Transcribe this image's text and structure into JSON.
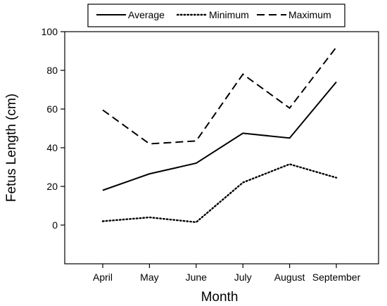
{
  "chart_data": {
    "type": "line",
    "title": "",
    "xlabel": "Month",
    "ylabel": "Fetus Length (cm)",
    "categories": [
      "April",
      "May",
      "June",
      "July",
      "August",
      "September"
    ],
    "ylim": [
      -20,
      100
    ],
    "yticks": [
      0,
      20,
      40,
      60,
      80,
      100
    ],
    "grid": false,
    "legend_position": "top",
    "series": [
      {
        "name": "Average",
        "style": "solid",
        "values": [
          18,
          26.5,
          32,
          47.5,
          45,
          74
        ]
      },
      {
        "name": "Minimum",
        "style": "dotted",
        "values": [
          2,
          4,
          1.5,
          22,
          31.5,
          24.5
        ]
      },
      {
        "name": "Maximum",
        "style": "dashed",
        "values": [
          59.5,
          42,
          43.5,
          78,
          60.5,
          92
        ]
      }
    ]
  },
  "colors": {
    "line": "#000000",
    "background": "#ffffff"
  }
}
